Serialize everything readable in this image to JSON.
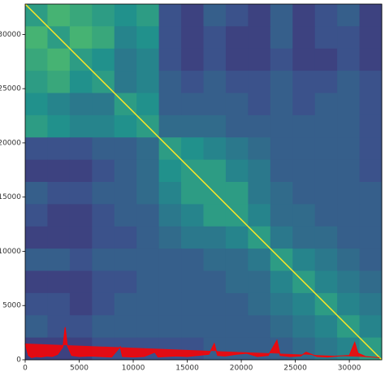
{
  "chart_data": {
    "type": "heatmap",
    "xlim": [
      0,
      33000
    ],
    "ylim": [
      0,
      32800
    ],
    "xticks": [
      0,
      5000,
      10000,
      15000,
      20000,
      25000,
      30000
    ],
    "yticks": [
      0,
      5000,
      10000,
      15000,
      20000,
      25000,
      30000
    ],
    "colormap": [
      "#440154",
      "#3b528b",
      "#21918c",
      "#5ec962",
      "#fde725"
    ],
    "diagonal": true,
    "z": [
      [
        0.55,
        0.65,
        0.6,
        0.55,
        0.5,
        0.55,
        0.25,
        0.2,
        0.3,
        0.25,
        0.2,
        0.3,
        0.2,
        0.25,
        0.3,
        0.2
      ],
      [
        0.65,
        0.55,
        0.65,
        0.6,
        0.45,
        0.5,
        0.25,
        0.2,
        0.25,
        0.2,
        0.2,
        0.3,
        0.2,
        0.25,
        0.25,
        0.2
      ],
      [
        0.6,
        0.65,
        0.55,
        0.5,
        0.4,
        0.45,
        0.25,
        0.2,
        0.25,
        0.2,
        0.2,
        0.25,
        0.2,
        0.2,
        0.25,
        0.2
      ],
      [
        0.55,
        0.6,
        0.5,
        0.55,
        0.4,
        0.45,
        0.3,
        0.25,
        0.3,
        0.25,
        0.25,
        0.3,
        0.25,
        0.25,
        0.3,
        0.25
      ],
      [
        0.5,
        0.45,
        0.4,
        0.4,
        0.55,
        0.5,
        0.3,
        0.3,
        0.3,
        0.3,
        0.25,
        0.3,
        0.25,
        0.3,
        0.3,
        0.25
      ],
      [
        0.55,
        0.5,
        0.45,
        0.45,
        0.5,
        0.55,
        0.35,
        0.35,
        0.35,
        0.3,
        0.3,
        0.3,
        0.3,
        0.3,
        0.3,
        0.25
      ],
      [
        0.25,
        0.25,
        0.25,
        0.3,
        0.3,
        0.35,
        0.55,
        0.5,
        0.45,
        0.4,
        0.35,
        0.3,
        0.3,
        0.3,
        0.3,
        0.25
      ],
      [
        0.2,
        0.2,
        0.2,
        0.25,
        0.3,
        0.35,
        0.5,
        0.55,
        0.55,
        0.45,
        0.4,
        0.3,
        0.3,
        0.3,
        0.3,
        0.25
      ],
      [
        0.3,
        0.25,
        0.25,
        0.3,
        0.3,
        0.35,
        0.45,
        0.55,
        0.55,
        0.55,
        0.4,
        0.35,
        0.3,
        0.3,
        0.3,
        0.3
      ],
      [
        0.25,
        0.2,
        0.2,
        0.25,
        0.3,
        0.3,
        0.4,
        0.45,
        0.55,
        0.55,
        0.45,
        0.35,
        0.35,
        0.3,
        0.3,
        0.3
      ],
      [
        0.2,
        0.2,
        0.2,
        0.25,
        0.25,
        0.3,
        0.35,
        0.4,
        0.4,
        0.45,
        0.55,
        0.4,
        0.35,
        0.35,
        0.3,
        0.3
      ],
      [
        0.3,
        0.3,
        0.25,
        0.3,
        0.3,
        0.3,
        0.3,
        0.3,
        0.35,
        0.35,
        0.4,
        0.55,
        0.45,
        0.4,
        0.35,
        0.3
      ],
      [
        0.2,
        0.2,
        0.2,
        0.25,
        0.25,
        0.3,
        0.3,
        0.3,
        0.3,
        0.35,
        0.35,
        0.45,
        0.55,
        0.45,
        0.4,
        0.35
      ],
      [
        0.25,
        0.25,
        0.2,
        0.25,
        0.3,
        0.3,
        0.3,
        0.3,
        0.3,
        0.3,
        0.35,
        0.4,
        0.45,
        0.55,
        0.45,
        0.4
      ],
      [
        0.3,
        0.25,
        0.25,
        0.3,
        0.3,
        0.3,
        0.3,
        0.3,
        0.3,
        0.3,
        0.3,
        0.35,
        0.4,
        0.45,
        0.55,
        0.45
      ],
      [
        0.2,
        0.2,
        0.2,
        0.25,
        0.25,
        0.25,
        0.25,
        0.25,
        0.3,
        0.3,
        0.3,
        0.3,
        0.35,
        0.4,
        0.45,
        0.55
      ]
    ],
    "series": [
      {
        "color": "#ff0000",
        "x": [
          0,
          300,
          600,
          1000,
          1500,
          2000,
          2500,
          3000,
          3500,
          3700,
          3900,
          4300,
          5000,
          6000,
          7000,
          8000,
          8800,
          9000,
          10000,
          11000,
          12000,
          12300,
          13000,
          14000,
          15000,
          16000,
          17000,
          17500,
          17800,
          18500,
          19500,
          20500,
          21500,
          22500,
          23300,
          23600,
          24500,
          25500,
          26000,
          27000,
          28000,
          29000,
          30000,
          30500,
          30800,
          31500,
          32000,
          32800
        ],
        "values": [
          1500,
          400,
          200,
          300,
          250,
          350,
          300,
          500,
          1200,
          3000,
          1300,
          400,
          300,
          350,
          300,
          250,
          1200,
          300,
          250,
          300,
          700,
          250,
          300,
          350,
          300,
          400,
          500,
          1500,
          400,
          350,
          500,
          600,
          300,
          400,
          1800,
          400,
          300,
          350,
          700,
          300,
          250,
          350,
          400,
          1600,
          600,
          300,
          250,
          200
        ]
      }
    ]
  }
}
